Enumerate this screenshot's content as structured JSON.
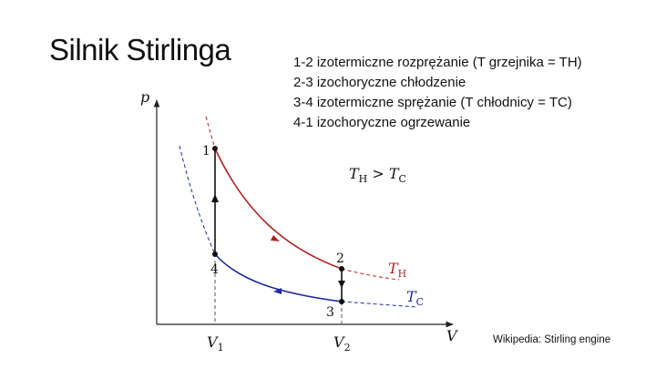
{
  "slide": {
    "title": "Silnik Stirlinga",
    "steps": [
      "1-2 izotermiczne rozprężanie (T grzejnika = TH)",
      "2-3 izochoryczne chłodzenie",
      "3-4 izotermiczne sprężanie (T chłodnicy = TC)",
      "4-1 izochoryczne ogrzewanie"
    ],
    "source": "Wikipedia: Stirling engine"
  },
  "diagram": {
    "axis_p": "p",
    "axis_V": "V",
    "tick_V1": {
      "base": "V",
      "sub": "1"
    },
    "tick_V2": {
      "base": "V",
      "sub": "2"
    },
    "point_labels": [
      "1",
      "2",
      "3",
      "4"
    ],
    "relation": {
      "a": "T",
      "a_sub": "H",
      "op": " > ",
      "b": "T",
      "b_sub": "C"
    },
    "isotherm_hot": {
      "base": "T",
      "sub": "H"
    },
    "isotherm_cold": {
      "base": "T",
      "sub": "C"
    },
    "colors": {
      "hot": "#b22222",
      "cold": "#1f2aa0",
      "axes": "#222222",
      "dashed": "#555555"
    }
  }
}
